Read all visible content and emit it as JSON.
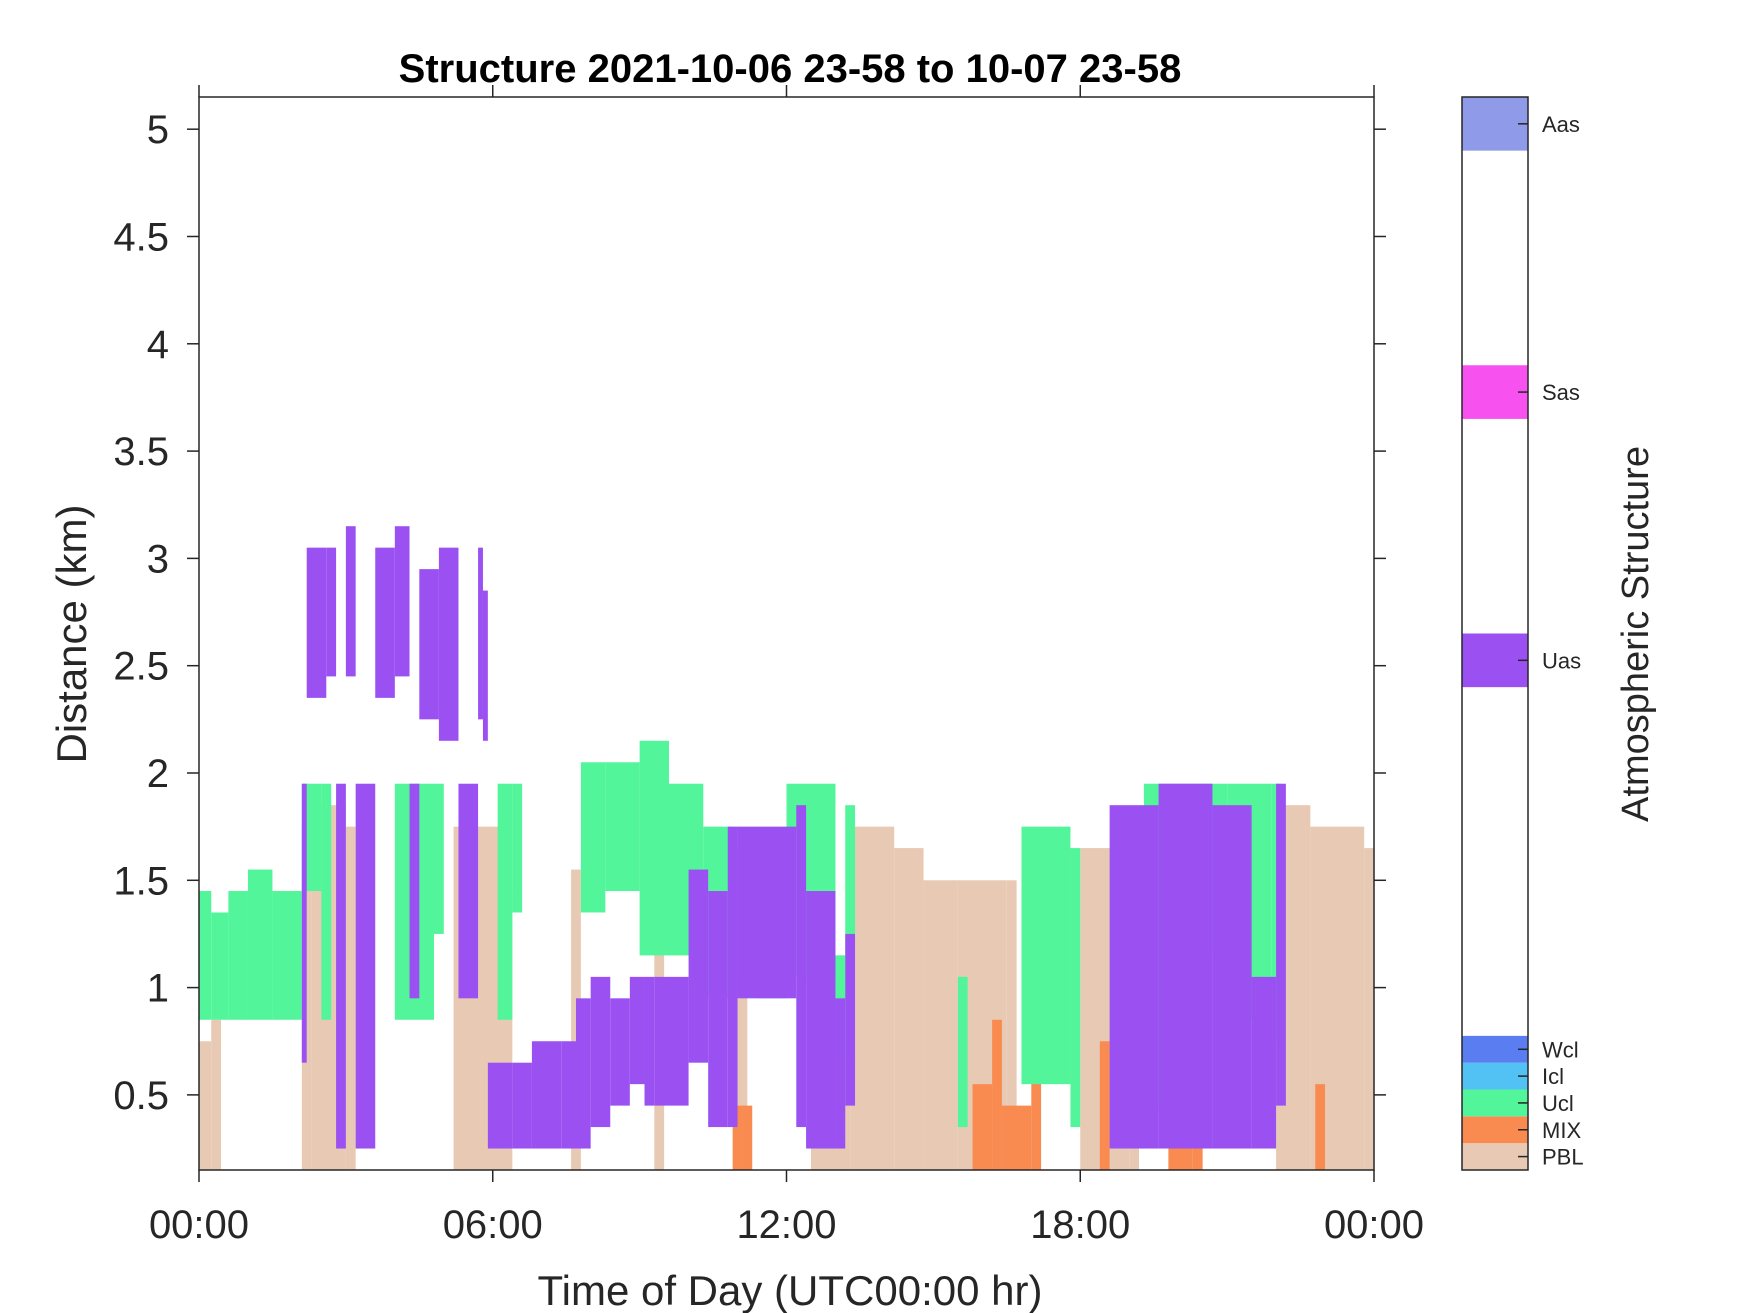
{
  "chart_data": {
    "type": "heatmap",
    "title": "Structure 2021-10-06 23-58 to 10-07 23-58",
    "xlabel": "Time of Day (UTC00:00 hr)",
    "ylabel": "Distance (km)",
    "xlim": [
      0,
      24
    ],
    "ylim": [
      0.15,
      5.15
    ],
    "x_ticks": [
      0,
      6,
      12,
      18,
      24
    ],
    "x_tick_labels": [
      "00:00",
      "06:00",
      "12:00",
      "18:00",
      "00:00"
    ],
    "y_ticks": [
      0.5,
      1,
      1.5,
      2,
      2.5,
      3,
      3.5,
      4,
      4.5,
      5
    ],
    "y_tick_labels": [
      "0.5",
      "1",
      "1.5",
      "2",
      "2.5",
      "3",
      "3.5",
      "4",
      "4.5",
      "5"
    ],
    "grid": false,
    "colorbar": {
      "label": "Atmospheric Structure",
      "classes": [
        {
          "name": "PBL",
          "color": "#e8c9b4",
          "level": 0.5
        },
        {
          "name": "MIX",
          "color": "#f98b50",
          "level": 1.5
        },
        {
          "name": "Ucl",
          "color": "#52f59a",
          "level": 2.5
        },
        {
          "name": "Icl",
          "color": "#52c2f5",
          "level": 3.5
        },
        {
          "name": "Wcl",
          "color": "#5a7df2",
          "level": 4.5
        },
        {
          "name": "Uas",
          "color": "#9b51f2",
          "level": 19
        },
        {
          "name": "Sas",
          "color": "#f752f0",
          "level": 29
        },
        {
          "name": "Aas",
          "color": "#8f9be8",
          "level": 39
        }
      ],
      "range": [
        0,
        40
      ]
    },
    "series": [
      {
        "name": "PBL",
        "segments": [
          [
            0.0,
            0.15,
            0.75
          ],
          [
            0.25,
            0.15,
            0.85
          ],
          [
            2.1,
            0.15,
            1.75
          ],
          [
            2.3,
            0.15,
            1.85
          ],
          [
            3.0,
            0.15,
            1.75
          ],
          [
            5.2,
            0.15,
            1.75
          ],
          [
            6.2,
            0.15,
            1.45
          ],
          [
            7.6,
            0.15,
            1.55
          ],
          [
            9.3,
            0.15,
            1.65
          ],
          [
            11.0,
            0.15,
            1.35
          ],
          [
            12.5,
            0.15,
            1.15
          ],
          [
            13.3,
            0.15,
            1.75
          ],
          [
            14.2,
            0.15,
            1.65
          ],
          [
            14.8,
            0.15,
            1.5
          ],
          [
            15.5,
            0.15,
            1.5
          ],
          [
            16.5,
            0.15,
            1.5
          ],
          [
            18.0,
            0.15,
            1.65
          ],
          [
            19.0,
            0.15,
            1.75
          ],
          [
            22.0,
            0.15,
            1.85
          ],
          [
            22.7,
            0.15,
            1.75
          ],
          [
            23.8,
            0.15,
            1.65
          ]
        ]
      },
      {
        "name": "MIX",
        "segments": [
          [
            10.9,
            0.15,
            0.45
          ],
          [
            11.1,
            0.15,
            0.45
          ],
          [
            15.8,
            0.15,
            0.55
          ],
          [
            16.2,
            0.15,
            0.85
          ],
          [
            16.4,
            0.15,
            0.45
          ],
          [
            17.0,
            0.15,
            0.65
          ],
          [
            18.4,
            0.15,
            0.75
          ],
          [
            19.8,
            0.15,
            0.45
          ],
          [
            20.3,
            0.15,
            0.45
          ],
          [
            22.8,
            0.15,
            0.55
          ]
        ]
      },
      {
        "name": "Ucl",
        "segments": [
          [
            0.0,
            0.85,
            1.45
          ],
          [
            0.25,
            0.85,
            1.35
          ],
          [
            0.6,
            0.85,
            1.45
          ],
          [
            1.0,
            0.85,
            1.55
          ],
          [
            1.5,
            0.85,
            1.45
          ],
          [
            2.1,
            1.45,
            1.95
          ],
          [
            2.5,
            0.85,
            1.95
          ],
          [
            4.0,
            0.85,
            1.95
          ],
          [
            4.8,
            1.25,
            1.95
          ],
          [
            6.1,
            0.85,
            1.95
          ],
          [
            6.4,
            1.35,
            1.95
          ],
          [
            7.8,
            1.35,
            2.05
          ],
          [
            8.3,
            1.45,
            2.05
          ],
          [
            9.0,
            1.15,
            2.15
          ],
          [
            9.6,
            1.15,
            1.95
          ],
          [
            10.3,
            0.95,
            1.75
          ],
          [
            10.9,
            1.05,
            1.65
          ],
          [
            11.4,
            0.95,
            1.65
          ],
          [
            12.0,
            1.05,
            1.95
          ],
          [
            13.0,
            0.45,
            1.15
          ],
          [
            13.2,
            0.65,
            1.85
          ],
          [
            15.5,
            0.35,
            1.05
          ],
          [
            16.8,
            0.55,
            1.75
          ],
          [
            17.8,
            0.35,
            1.65
          ],
          [
            19.3,
            0.45,
            1.95
          ],
          [
            20.0,
            1.15,
            1.95
          ],
          [
            21.0,
            0.85,
            1.95
          ],
          [
            21.9,
            0.75,
            1.95
          ]
        ]
      },
      {
        "name": "Uas",
        "segments": [
          [
            2.1,
            0.65,
            1.95
          ],
          [
            2.2,
            2.35,
            3.05
          ],
          [
            2.6,
            2.45,
            3.05
          ],
          [
            2.8,
            0.25,
            1.95
          ],
          [
            3.0,
            2.45,
            3.15
          ],
          [
            3.2,
            0.25,
            1.95
          ],
          [
            3.6,
            2.35,
            3.05
          ],
          [
            4.0,
            2.45,
            3.15
          ],
          [
            4.3,
            0.95,
            1.95
          ],
          [
            4.5,
            2.25,
            2.95
          ],
          [
            4.9,
            2.15,
            3.05
          ],
          [
            5.3,
            0.95,
            1.95
          ],
          [
            5.7,
            2.25,
            3.05
          ],
          [
            5.8,
            2.15,
            2.85
          ],
          [
            5.9,
            0.25,
            0.65
          ],
          [
            6.4,
            0.25,
            0.65
          ],
          [
            6.8,
            0.25,
            0.75
          ],
          [
            7.4,
            0.25,
            0.75
          ],
          [
            7.7,
            0.25,
            0.95
          ],
          [
            8.0,
            0.35,
            1.05
          ],
          [
            8.4,
            0.45,
            0.95
          ],
          [
            8.8,
            0.55,
            1.05
          ],
          [
            9.1,
            0.45,
            1.05
          ],
          [
            9.3,
            0.45,
            1.05
          ],
          [
            10.0,
            0.65,
            1.55
          ],
          [
            10.4,
            0.35,
            1.45
          ],
          [
            10.8,
            0.35,
            1.75
          ],
          [
            11.0,
            0.95,
            1.75
          ],
          [
            12.2,
            0.35,
            1.85
          ],
          [
            12.4,
            0.25,
            1.45
          ],
          [
            13.0,
            0.25,
            0.95
          ],
          [
            13.2,
            0.45,
            1.25
          ],
          [
            18.6,
            0.25,
            1.85
          ],
          [
            19.6,
            0.25,
            1.95
          ],
          [
            20.7,
            0.25,
            1.85
          ],
          [
            21.5,
            0.25,
            1.05
          ],
          [
            22.0,
            0.45,
            1.95
          ]
        ]
      }
    ]
  }
}
